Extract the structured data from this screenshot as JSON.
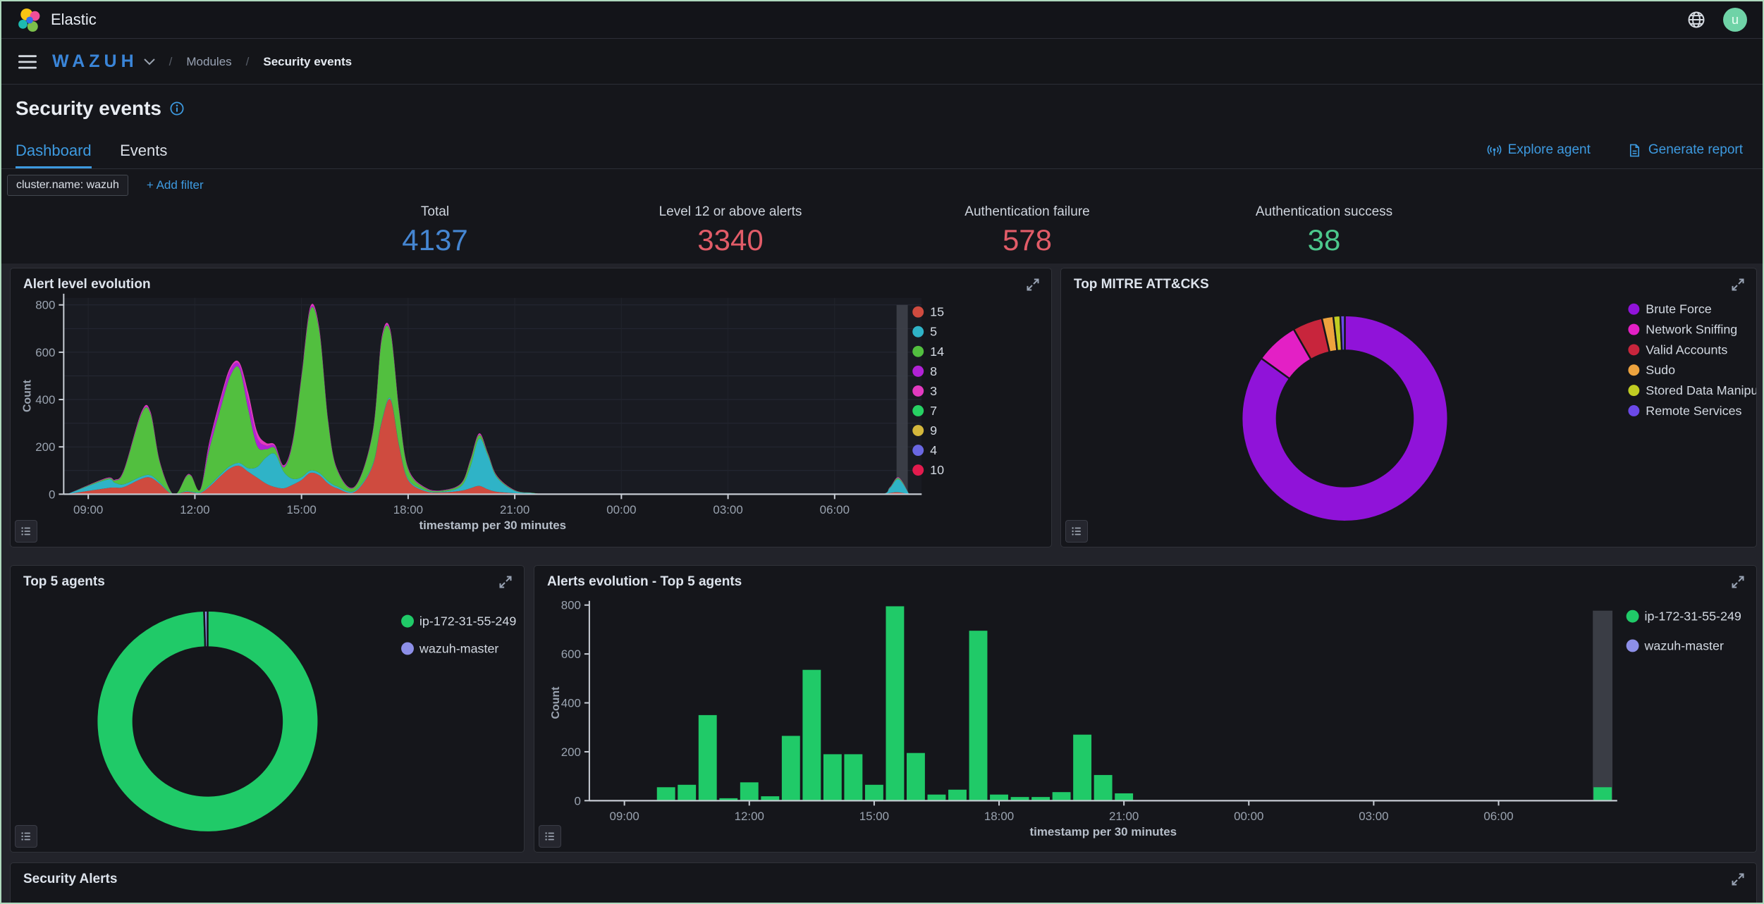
{
  "app": {
    "brand": "Elastic",
    "user_initial": "u"
  },
  "nav": {
    "logo": "WAZUH",
    "breadcrumbs": [
      "Modules",
      "Security events"
    ]
  },
  "page": {
    "title": "Security events",
    "tabs": [
      {
        "label": "Dashboard",
        "active": true
      },
      {
        "label": "Events",
        "active": false
      }
    ],
    "actions": [
      {
        "label": "Explore agent"
      },
      {
        "label": "Generate report"
      }
    ],
    "filters": {
      "chip": "cluster.name: wazuh",
      "add_filter": "+ Add filter"
    }
  },
  "stats": [
    {
      "label": "Total",
      "value": "4137",
      "color": "#4586d2"
    },
    {
      "label": "Level 12 or above alerts",
      "value": "3340",
      "color": "#e25c68"
    },
    {
      "label": "Authentication failure",
      "value": "578",
      "color": "#e25c68"
    },
    {
      "label": "Authentication success",
      "value": "38",
      "color": "#4cc88c"
    }
  ],
  "panels": [
    {
      "title": "Alert level evolution"
    },
    {
      "title": "Top MITRE ATT&CKS"
    },
    {
      "title": "Top 5 agents"
    },
    {
      "title": "Alerts evolution - Top 5 agents"
    },
    {
      "title": "Security Alerts"
    }
  ],
  "icons": [
    "elastic-logo",
    "globe-icon",
    "user-avatar",
    "hamburger-icon",
    "chevron-down-icon",
    "info-icon",
    "antenna-icon",
    "report-icon",
    "expand-icon",
    "inspect-icon"
  ],
  "colors": {
    "accent_blue": "#3d9ae0",
    "wazuh_blue": "#3a85d8",
    "avatar_bg": "#6fd3a7",
    "page_bg": "#15161b",
    "canvas_bg": "#22232a",
    "panel_border": "#303239",
    "axis_text": "#9aa3b0",
    "axis_line": "#c9ced6",
    "legend_text": "#d3d9e2",
    "partial_band": "#3e414a"
  },
  "chart_data": [
    {
      "type": "area",
      "stacked": true,
      "title": "Alert level evolution",
      "xlabel": "timestamp per 30 minutes",
      "ylabel": "Count",
      "ylim": [
        0,
        800
      ],
      "yticks": [
        0,
        200,
        400,
        600,
        800
      ],
      "xticks": [
        "09:00",
        "12:00",
        "15:00",
        "18:00",
        "21:00",
        "00:00",
        "03:00",
        "06:00"
      ],
      "xtick_hours": [
        9,
        12,
        15,
        18,
        21,
        24,
        27,
        30
      ],
      "grid": true,
      "legend_position": "right",
      "highlight_band_hour": 31.9,
      "x_hours": [
        8.4,
        9.5,
        9.75,
        10,
        10.5,
        10.75,
        11,
        11.3,
        11.5,
        11.75,
        11.9,
        12.15,
        12.4,
        12.75,
        13,
        13.25,
        13.5,
        13.75,
        14,
        14.25,
        14.5,
        14.75,
        15,
        15.25,
        15.5,
        15.75,
        16,
        16.5,
        17,
        17.25,
        17.5,
        17.75,
        18,
        18.5,
        19,
        19.5,
        19.75,
        20,
        20.25,
        20.5,
        21,
        21.5,
        22,
        24,
        27,
        30,
        31.3,
        31.55,
        31.8,
        32.1
      ],
      "series": [
        {
          "name": "15",
          "color": "#cf4b3f",
          "values": [
            0,
            25,
            28,
            30,
            65,
            70,
            45,
            5,
            2,
            10,
            8,
            5,
            30,
            80,
            110,
            120,
            95,
            70,
            45,
            30,
            25,
            40,
            60,
            90,
            80,
            45,
            25,
            10,
            120,
            300,
            400,
            200,
            60,
            12,
            8,
            15,
            25,
            35,
            20,
            10,
            4,
            2,
            0,
            0,
            0,
            0,
            0,
            5,
            8,
            0
          ]
        },
        {
          "name": "5",
          "color": "#2fb3c7",
          "values": [
            0,
            35,
            20,
            12,
            10,
            10,
            6,
            2,
            1,
            3,
            3,
            3,
            6,
            8,
            10,
            12,
            15,
            45,
            110,
            140,
            70,
            25,
            12,
            10,
            10,
            10,
            8,
            5,
            5,
            5,
            5,
            5,
            5,
            4,
            3,
            20,
            90,
            200,
            140,
            60,
            10,
            3,
            0,
            0,
            0,
            0,
            0,
            20,
            55,
            0
          ]
        },
        {
          "name": "14",
          "color": "#52bf3f",
          "values": [
            0,
            5,
            10,
            55,
            265,
            260,
            90,
            10,
            2,
            60,
            65,
            10,
            150,
            290,
            380,
            400,
            250,
            90,
            35,
            25,
            18,
            150,
            420,
            680,
            600,
            250,
            70,
            15,
            130,
            340,
            280,
            140,
            40,
            8,
            5,
            10,
            25,
            15,
            8,
            5,
            2,
            1,
            0,
            0,
            0,
            0,
            0,
            2,
            5,
            0
          ]
        },
        {
          "name": "8",
          "color": "#b222d6",
          "values": [
            0,
            1,
            1,
            2,
            3,
            3,
            2,
            1,
            0,
            1,
            1,
            1,
            20,
            30,
            25,
            15,
            40,
            35,
            15,
            8,
            5,
            5,
            5,
            5,
            4,
            3,
            2,
            1,
            2,
            4,
            3,
            2,
            2,
            1,
            1,
            1,
            2,
            2,
            1,
            1,
            0,
            0,
            0,
            0,
            0,
            0,
            0,
            1,
            1,
            0
          ]
        },
        {
          "name": "3",
          "color": "#e23ac0",
          "values": [
            0,
            2,
            2,
            3,
            6,
            6,
            4,
            1,
            0,
            2,
            2,
            1,
            10,
            14,
            12,
            10,
            30,
            25,
            12,
            6,
            4,
            5,
            7,
            9,
            8,
            5,
            3,
            2,
            5,
            8,
            7,
            5,
            4,
            2,
            1,
            2,
            4,
            5,
            3,
            2,
            1,
            0,
            0,
            0,
            0,
            0,
            0,
            1,
            2,
            0
          ]
        },
        {
          "name": "7",
          "color": "#27d163",
          "values": []
        },
        {
          "name": "9",
          "color": "#d4b73c",
          "values": []
        },
        {
          "name": "4",
          "color": "#6a67e2",
          "values": []
        },
        {
          "name": "10",
          "color": "#e31b4e",
          "values": []
        }
      ]
    },
    {
      "type": "pie",
      "donut": true,
      "title": "Top MITRE ATT&CKS",
      "legend_position": "right",
      "slices": [
        {
          "label": "Brute Force",
          "value": 85.2,
          "color": "#9013d9"
        },
        {
          "label": "Network Sniffing",
          "value": 6.8,
          "color": "#e320c5"
        },
        {
          "label": "Valid Accounts",
          "value": 4.7,
          "color": "#c8253c"
        },
        {
          "label": "Sudo",
          "value": 1.8,
          "color": "#eda33e"
        },
        {
          "label": "Stored Data Manipu...",
          "value": 1.1,
          "color": "#c0cc22"
        },
        {
          "label": "Remote Services",
          "value": 0.7,
          "color": "#6b49e8"
        }
      ]
    },
    {
      "type": "pie",
      "donut": true,
      "title": "Top 5 agents",
      "legend_position": "right",
      "slices": [
        {
          "label": "ip-172-31-55-249",
          "value": 99.5,
          "color": "#20ca68"
        },
        {
          "label": "wazuh-master",
          "value": 0.5,
          "color": "#8d8fe8"
        }
      ]
    },
    {
      "type": "bar",
      "title": "Alerts evolution - Top 5 agents",
      "xlabel": "timestamp per 30 minutes",
      "ylabel": "Count",
      "ylim": [
        0,
        800
      ],
      "yticks": [
        0,
        200,
        400,
        600,
        800
      ],
      "xticks": [
        "09:00",
        "12:00",
        "15:00",
        "18:00",
        "21:00",
        "00:00",
        "03:00",
        "06:00"
      ],
      "xtick_hours": [
        9,
        12,
        15,
        18,
        21,
        24,
        27,
        30
      ],
      "grid": false,
      "legend_position": "top-right",
      "highlight_band_hour": 32.5,
      "x_hours": [
        10,
        10.5,
        11,
        11.5,
        12,
        12.5,
        13,
        13.5,
        14,
        14.5,
        15,
        15.5,
        16,
        16.5,
        17,
        17.5,
        18,
        18.5,
        19,
        19.5,
        20,
        20.5,
        21,
        32.5
      ],
      "series": [
        {
          "name": "ip-172-31-55-249",
          "color": "#20ca68",
          "values": [
            55,
            65,
            350,
            10,
            75,
            18,
            265,
            535,
            190,
            190,
            65,
            795,
            195,
            25,
            45,
            695,
            25,
            15,
            15,
            35,
            270,
            105,
            30,
            55
          ]
        },
        {
          "name": "wazuh-master",
          "color": "#8d8fe8",
          "values": []
        }
      ]
    }
  ]
}
